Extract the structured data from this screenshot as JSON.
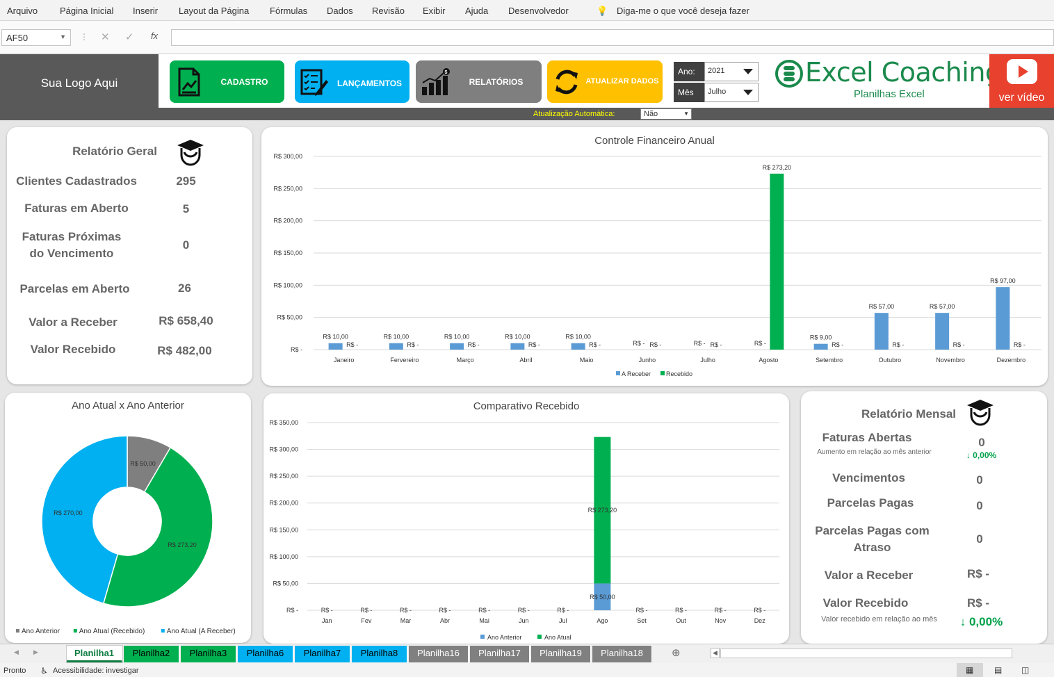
{
  "ribbon": {
    "menu": [
      "Arquivo",
      "Página Inicial",
      "Inserir",
      "Layout da Página",
      "Fórmulas",
      "Dados",
      "Revisão",
      "Exibir",
      "Ajuda",
      "Desenvolvedor"
    ],
    "tell_me": "Diga-me o que você deseja fazer"
  },
  "formula_bar": {
    "name_box": "AF50",
    "fx": "fx"
  },
  "header": {
    "logo_placeholder": "Sua Logo Aqui",
    "buttons": [
      {
        "label": "CADASTRO",
        "color": "#00b050"
      },
      {
        "label": "LANÇAMENTOS",
        "color": "#00b0f0"
      },
      {
        "label": "RELATÓRIOS",
        "color": "#7f7f7f"
      },
      {
        "label": "ATUALIZAR DADOS",
        "color": "#ffc000"
      }
    ],
    "ano_label": "Ano:",
    "ano_value": "2021",
    "mes_label": "Mês",
    "mes_value": "Julho",
    "brand_name": "Excel Coaching",
    "brand_sub": "Planilhas Excel",
    "video_label": "ver vídeo",
    "auto_update_label": "Atualização Automática:",
    "auto_update_value": "Não"
  },
  "relatorio_geral": {
    "title": "Relatório Geral",
    "rows": [
      {
        "label": "Clientes Cadastrados",
        "value": "295"
      },
      {
        "label": "Faturas em Aberto",
        "value": "5"
      },
      {
        "label": "Faturas Próximas do Vencimento",
        "value": "0"
      },
      {
        "label": "Parcelas em Aberto",
        "value": "26"
      },
      {
        "label": "Valor a Receber",
        "value": "R$ 658,40"
      },
      {
        "label": "Valor Recebido",
        "value": "R$ 482,00"
      }
    ]
  },
  "relatorio_mensal": {
    "title": "Relatório Mensal",
    "faturas_abertas_label": "Faturas Abertas",
    "faturas_abertas_value": "0",
    "aumento_label": "Aumento em relação ao mês anterior",
    "aumento_value": "↓ 0,00%",
    "vencimentos_label": "Vencimentos",
    "vencimentos_value": "0",
    "parcelas_pagas_label": "Parcelas Pagas",
    "parcelas_pagas_value": "0",
    "parcelas_atraso_label": "Parcelas Pagas com Atraso",
    "parcelas_atraso_value": "0",
    "valor_receber_label": "Valor a Receber",
    "valor_receber_value": "R$ -",
    "valor_recebido_label": "Valor Recebido",
    "valor_recebido_value": "R$ -",
    "recebido_mes_label": "Valor recebido em relação ao mês",
    "recebido_mes_value": "↓ 0,00%"
  },
  "colors": {
    "blue": "#5b9bd5",
    "green": "#00b050",
    "gray": "#7f7f7f",
    "cyan": "#00b0f0"
  },
  "chart_data": [
    {
      "type": "bar",
      "title": "Controle Financeiro Anual",
      "categories": [
        "Janeiro",
        "Fervereiro",
        "Março",
        "Abril",
        "Maio",
        "Junho",
        "Julho",
        "Agosto",
        "Setembro",
        "Outubro",
        "Novembro",
        "Dezembro"
      ],
      "series": [
        {
          "name": "A Receber",
          "values": [
            10,
            10,
            10,
            10,
            10,
            0,
            0,
            0,
            9,
            57,
            57,
            97
          ],
          "labels": [
            "R$ 10,00",
            "R$ 10,00",
            "R$ 10,00",
            "R$ 10,00",
            "R$ 10,00",
            "R$ -",
            "R$ -",
            "R$ -",
            "R$ 9,00",
            "R$ 57,00",
            "R$ 57,00",
            "R$ 97,00"
          ]
        },
        {
          "name": "Recebido",
          "values": [
            0,
            0,
            0,
            0,
            0,
            0,
            0,
            273.2,
            0,
            0,
            0,
            0
          ],
          "labels": [
            "R$ -",
            "R$ -",
            "R$ -",
            "R$ -",
            "R$ -",
            "R$ -",
            "R$ -",
            "R$ 273,20",
            "R$ -",
            "R$ -",
            "R$ -",
            "R$ -"
          ]
        }
      ],
      "yticks": [
        "R$ -",
        "R$ 50,00",
        "R$ 100,00",
        "R$ 150,00",
        "R$ 200,00",
        "R$ 250,00",
        "R$ 300,00"
      ],
      "ylim": [
        0,
        300
      ],
      "legend": "bottom"
    },
    {
      "type": "bar",
      "title": "Comparativo Recebido",
      "stacked": true,
      "categories": [
        "Jan",
        "Fev",
        "Mar",
        "Abr",
        "Mai",
        "Jun",
        "Jul",
        "Ago",
        "Set",
        "Out",
        "Nov",
        "Dez"
      ],
      "series": [
        {
          "name": "Ano Anterior",
          "values": [
            0,
            0,
            0,
            0,
            0,
            0,
            0,
            50,
            0,
            0,
            0,
            0
          ],
          "labels": [
            "R$ -",
            "R$ -",
            "R$ -",
            "R$ -",
            "R$ -",
            "R$ -",
            "R$ -",
            "R$ 50,00",
            "R$ -",
            "R$ -",
            "R$ -",
            "R$ -"
          ]
        },
        {
          "name": "Ano Atual",
          "values": [
            0,
            0,
            0,
            0,
            0,
            0,
            0,
            273.2,
            0,
            0,
            0,
            0
          ],
          "labels": [
            "",
            "",
            "",
            "",
            "",
            "",
            "",
            "R$ 273,20",
            "",
            "",
            "",
            ""
          ]
        }
      ],
      "yticks": [
        "R$ -",
        "R$ 50,00",
        "R$ 100,00",
        "R$ 150,00",
        "R$ 200,00",
        "R$ 250,00",
        "R$ 300,00",
        "R$ 350,00"
      ],
      "ylim": [
        0,
        350
      ],
      "legend": "bottom"
    },
    {
      "type": "pie",
      "donut": true,
      "title": "Ano Atual x Ano Anterior",
      "series": [
        {
          "name": "Ano Anterior",
          "value": 50,
          "label": "R$ 50,00",
          "color": "#7f7f7f"
        },
        {
          "name": "Ano Atual (Recebido)",
          "value": 273.2,
          "label": "R$ 273,20",
          "color": "#00b050"
        },
        {
          "name": "Ano Atual (A Receber)",
          "value": 270,
          "label": "R$ 270,00",
          "color": "#00b0f0"
        }
      ],
      "legend": "bottom"
    }
  ],
  "sheets": [
    {
      "name": "Planilha1",
      "bg": "#ffffff",
      "fg": "#107c41",
      "active": true
    },
    {
      "name": "Planilha2",
      "bg": "#00b050",
      "fg": "#000000"
    },
    {
      "name": "Planilha3",
      "bg": "#00b050",
      "fg": "#000000"
    },
    {
      "name": "Planilha6",
      "bg": "#00b0f0",
      "fg": "#000000"
    },
    {
      "name": "Planilha7",
      "bg": "#00b0f0",
      "fg": "#000000"
    },
    {
      "name": "Planilha8",
      "bg": "#00b0f0",
      "fg": "#000000"
    },
    {
      "name": "Planilha16",
      "bg": "#808080",
      "fg": "#ffffff"
    },
    {
      "name": "Planilha17",
      "bg": "#808080",
      "fg": "#ffffff"
    },
    {
      "name": "Planilha19",
      "bg": "#808080",
      "fg": "#ffffff"
    },
    {
      "name": "Planilha18",
      "bg": "#808080",
      "fg": "#ffffff"
    }
  ],
  "status": {
    "ready": "Pronto",
    "accessibility": "Acessibilidade: investigar"
  }
}
